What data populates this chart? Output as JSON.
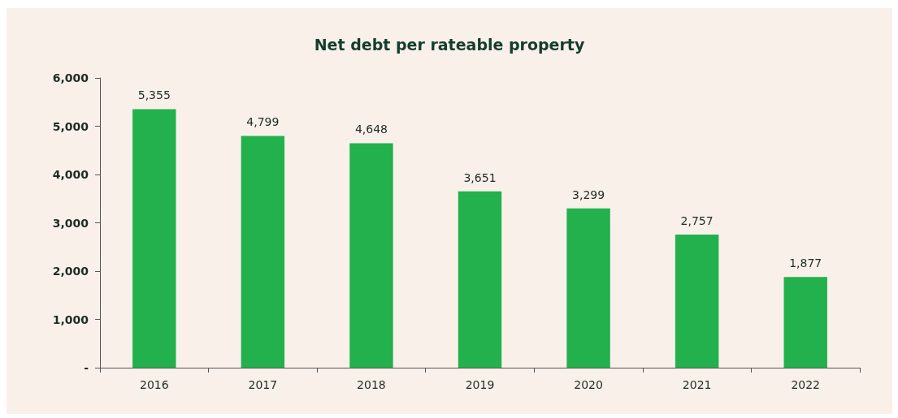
{
  "chart_data": {
    "type": "bar",
    "title": "Net debt per rateable property",
    "categories": [
      "2016",
      "2017",
      "2018",
      "2019",
      "2020",
      "2021",
      "2022"
    ],
    "values": [
      5355,
      4799,
      4648,
      3651,
      3299,
      2757,
      1877
    ],
    "value_labels": [
      "5,355",
      "4,799",
      "4,648",
      "3,651",
      "3,299",
      "2,757",
      "1,877"
    ],
    "color": "#22b14c",
    "ylim": [
      0,
      6000
    ],
    "yticks": [
      {
        "value": 0,
        "label": "-"
      },
      {
        "value": 1000,
        "label": "1,000"
      },
      {
        "value": 2000,
        "label": "2,000"
      },
      {
        "value": 3000,
        "label": "3,000"
      },
      {
        "value": 4000,
        "label": "4,000"
      },
      {
        "value": 5000,
        "label": "5,000"
      },
      {
        "value": 6000,
        "label": "6,000"
      }
    ],
    "grid": false
  }
}
